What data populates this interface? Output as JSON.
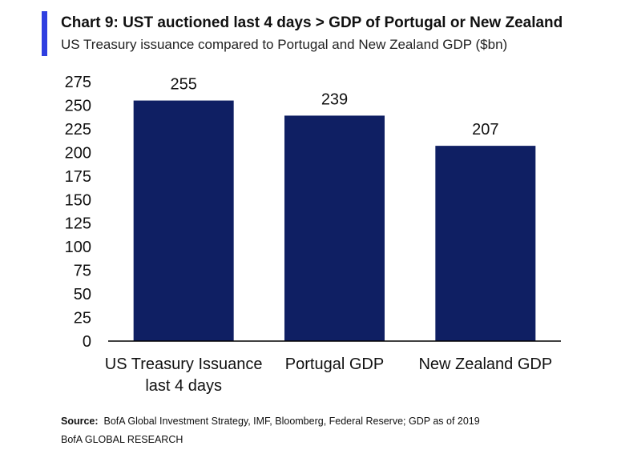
{
  "header": {
    "title": "Chart 9: UST auctioned last 4 days > GDP of Portugal or New Zealand",
    "subtitle": "US Treasury issuance compared to Portugal and New Zealand GDP ($bn)"
  },
  "colors": {
    "accent": "#2f3fe0",
    "bar": "#0f1f63",
    "axis": "#000000"
  },
  "chart_data": {
    "type": "bar",
    "categories": [
      [
        "US Treasury Issuance",
        "last 4 days"
      ],
      [
        "Portugal GDP"
      ],
      [
        "New Zealand GDP"
      ]
    ],
    "values": [
      255,
      239,
      207
    ],
    "data_labels": [
      "255",
      "239",
      "207"
    ],
    "ylim": [
      0,
      275
    ],
    "yticks": [
      0,
      25,
      50,
      75,
      100,
      125,
      150,
      175,
      200,
      225,
      250,
      275
    ],
    "grid": false,
    "legend": "none"
  },
  "footer": {
    "source_label": "Source:",
    "source_text": "BofA Global Investment Strategy, IMF, Bloomberg, Federal Reserve; GDP as of 2019",
    "brand": "BofA GLOBAL RESEARCH"
  }
}
